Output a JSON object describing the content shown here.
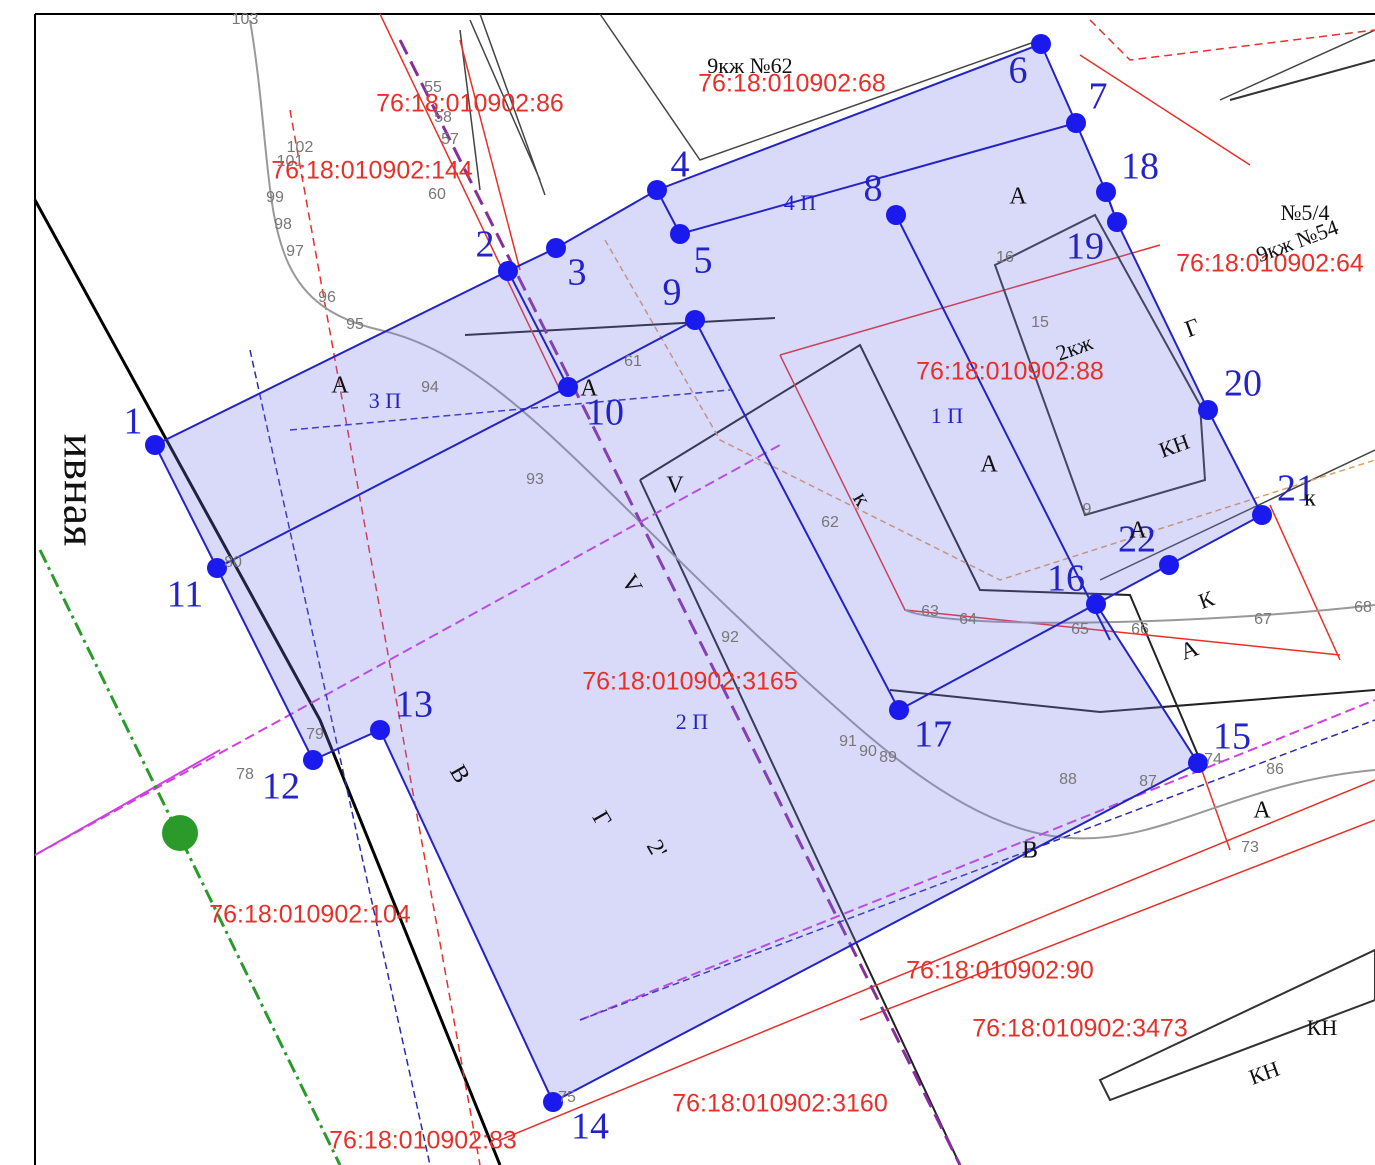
{
  "cadastral_numbers": [
    "76:18:010902:86",
    "76:18:010902:68",
    "76:18:010902:144",
    "76:18:010902:64",
    "76:18:010902:88",
    "76:18:010902:3165",
    "76:18:010902:104",
    "76:18:010902:90",
    "76:18:010902:3473",
    "76:18:010902:3160",
    "76:18:010902:83"
  ],
  "points": [
    "1",
    "2",
    "3",
    "4",
    "5",
    "6",
    "7",
    "8",
    "9",
    "10",
    "11",
    "12",
    "13",
    "14",
    "15",
    "16",
    "17",
    "18",
    "19",
    "20",
    "21",
    "22"
  ],
  "zones": [
    "4 П",
    "3 П",
    "1 П",
    "2 П"
  ],
  "letters": [
    "А",
    "А",
    "А",
    "А",
    "А",
    "А",
    "А",
    "В",
    "В",
    "Г",
    "Г",
    "V",
    "V",
    "к",
    "к",
    "2'"
  ],
  "labels": [
    "9кж №62",
    "№5/4",
    "9кж №54",
    "2кж",
    "КН",
    "К",
    "КН",
    "КН",
    "ивная"
  ],
  "gray_numbers": [
    "103",
    "102",
    "101",
    "99",
    "98",
    "97",
    "96",
    "95",
    "94",
    "93",
    "92",
    "91",
    "90",
    "89",
    "88",
    "87",
    "86",
    "79",
    "78",
    "75",
    "74",
    "73",
    "68",
    "67",
    "66",
    "65",
    "64",
    "63",
    "62",
    "61",
    "60",
    "55",
    "58",
    "57",
    "15",
    "16",
    "9",
    "80"
  ]
}
